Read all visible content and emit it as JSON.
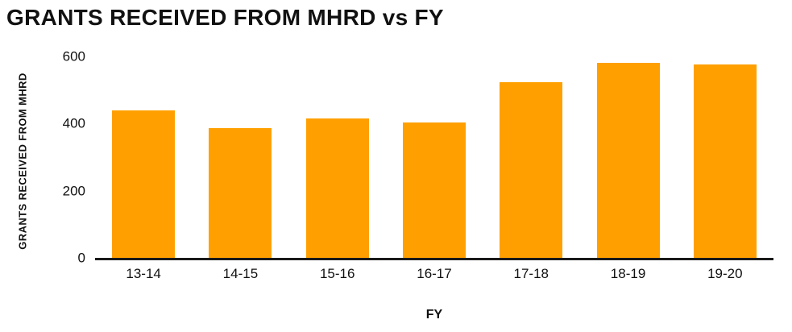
{
  "title": "GRANTS RECEIVED FROM MHRD vs FY",
  "colors": {
    "bar": "#FFA000",
    "axis": "#1a1a1a",
    "text": "#111111"
  },
  "chart_data": {
    "type": "bar",
    "title": "GRANTS RECEIVED FROM MHRD vs FY",
    "xlabel": "FY",
    "ylabel": "GRANTS RECEIVED FROM MHRD",
    "categories": [
      "13-14",
      "14-15",
      "15-16",
      "16-17",
      "17-18",
      "18-19",
      "19-20"
    ],
    "values": [
      440,
      387,
      415,
      403,
      523,
      580,
      575
    ],
    "ylim": [
      0,
      600
    ],
    "yticks": [
      0,
      200,
      400,
      600
    ],
    "grid": false,
    "legend": "none",
    "bar_color": "#FFA000"
  }
}
